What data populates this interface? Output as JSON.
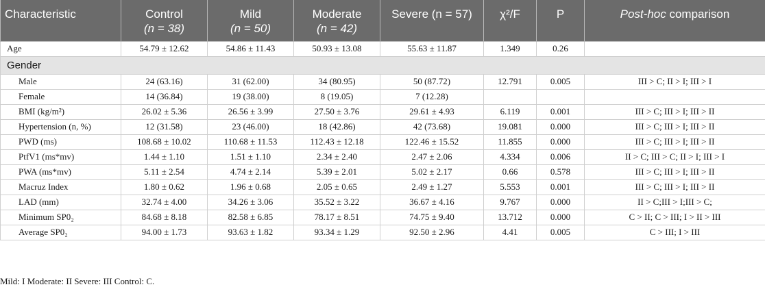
{
  "table": {
    "headers": {
      "characteristic": "Characteristic",
      "control": {
        "label": "Control",
        "n": "(n = 38)"
      },
      "mild": {
        "label": "Mild",
        "n": "(n = 50)"
      },
      "moderate": {
        "label": "Moderate",
        "n": "(n = 42)"
      },
      "severe": {
        "label": "Severe (n = 57)"
      },
      "stat": "χ²/F",
      "p": "P",
      "posthoc_italic": "Post-hoc",
      "posthoc_rest": " comparison"
    },
    "age": {
      "label": "Age",
      "cells": [
        "54.79 ± 12.62",
        "54.86 ± 11.43",
        "50.93 ± 13.08",
        "55.63 ± 11.87",
        "1.349",
        "0.26",
        ""
      ]
    },
    "gender_section": "Gender",
    "rows": [
      {
        "label": "Male",
        "cells": [
          "24 (63.16)",
          "31 (62.00)",
          "34 (80.95)",
          "50 (87.72)",
          "12.791",
          "0.005",
          "III > C; II > I; III > I"
        ]
      },
      {
        "label": "Female",
        "cells": [
          "14 (36.84)",
          "19 (38.00)",
          "8 (19.05)",
          "7 (12.28)",
          "",
          "",
          ""
        ]
      },
      {
        "label": "BMI (kg/m²)",
        "cells": [
          "26.02 ± 5.36",
          "26.56 ± 3.99",
          "27.50 ± 3.76",
          "29.61 ± 4.93",
          "6.119",
          "0.001",
          "III > C; III > I; III > II"
        ]
      },
      {
        "label": "Hypertension (n, %)",
        "cells": [
          "12 (31.58)",
          "23 (46.00)",
          "18 (42.86)",
          "42 (73.68)",
          "19.081",
          "0.000",
          "III > C; III > I; III > II"
        ]
      },
      {
        "label": "PWD (ms)",
        "cells": [
          "108.68 ± 10.02",
          "110.68 ± 11.53",
          "112.43 ± 12.18",
          "122.46 ± 15.52",
          "11.855",
          "0.000",
          "III > C; III > I; III > II"
        ]
      },
      {
        "label": "PtfV1 (ms*mv)",
        "cells": [
          "1.44 ± 1.10",
          "1.51 ± 1.10",
          "2.34 ± 2.40",
          "2.47 ± 2.06",
          "4.334",
          "0.006",
          "II > C; III > C; II > I; III > I"
        ]
      },
      {
        "label": "PWA (ms*mv)",
        "cells": [
          "5.11 ± 2.54",
          "4.74 ± 2.14",
          "5.39 ± 2.01",
          "5.02 ± 2.17",
          "0.66",
          "0.578",
          "III > C; III > I; III > II"
        ]
      },
      {
        "label": "Macruz Index",
        "cells": [
          "1.80 ± 0.62",
          "1.96 ± 0.68",
          "2.05 ± 0.65",
          "2.49 ± 1.27",
          "5.553",
          "0.001",
          "III > C; III > I; III > II"
        ]
      },
      {
        "label": "LAD (mm)",
        "cells": [
          "32.74 ± 4.00",
          "34.26 ± 3.06",
          "35.52 ± 3.22",
          "36.67 ± 4.16",
          "9.767",
          "0.000",
          "II > C;III > I;III > C;"
        ]
      },
      {
        "label": "Minimum SP0₂",
        "cells": [
          "84.68 ± 8.18",
          "82.58 ± 6.85",
          "78.17 ± 8.51",
          "74.75 ± 9.40",
          "13.712",
          "0.000",
          "C > II; C > III; I > II > III"
        ]
      },
      {
        "label": "Average SP0₂",
        "cells": [
          "94.00 ± 1.73",
          "93.63 ± 1.82",
          "93.34 ± 1.29",
          "92.50 ± 2.96",
          "4.41",
          "0.005",
          "C > III; I > III"
        ]
      }
    ]
  },
  "footnote": "Mild: I Moderate: II Severe: III Control: C."
}
